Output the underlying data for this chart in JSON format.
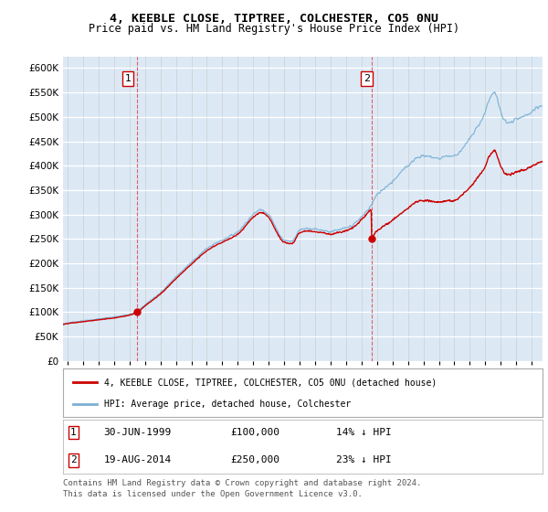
{
  "title": "4, KEEBLE CLOSE, TIPTREE, COLCHESTER, CO5 0NU",
  "subtitle": "Price paid vs. HM Land Registry's House Price Index (HPI)",
  "sale1_year": 1999.5,
  "sale1_price": 100000,
  "sale2_year": 2014.6333,
  "sale2_price": 250000,
  "legend_line1": "4, KEEBLE CLOSE, TIPTREE, COLCHESTER, CO5 0NU (detached house)",
  "legend_line2": "HPI: Average price, detached house, Colchester",
  "footer_line1": "Contains HM Land Registry data © Crown copyright and database right 2024.",
  "footer_line2": "This data is licensed under the Open Government Licence v3.0.",
  "price_color": "#cc0000",
  "hpi_color": "#7ab0d4",
  "background_color": "#dce9f5",
  "grid_color": "#ffffff",
  "ylim_min": 0,
  "ylim_max": 600000,
  "ytick_step": 50000,
  "xmin": 1994.7,
  "xmax": 2025.7
}
